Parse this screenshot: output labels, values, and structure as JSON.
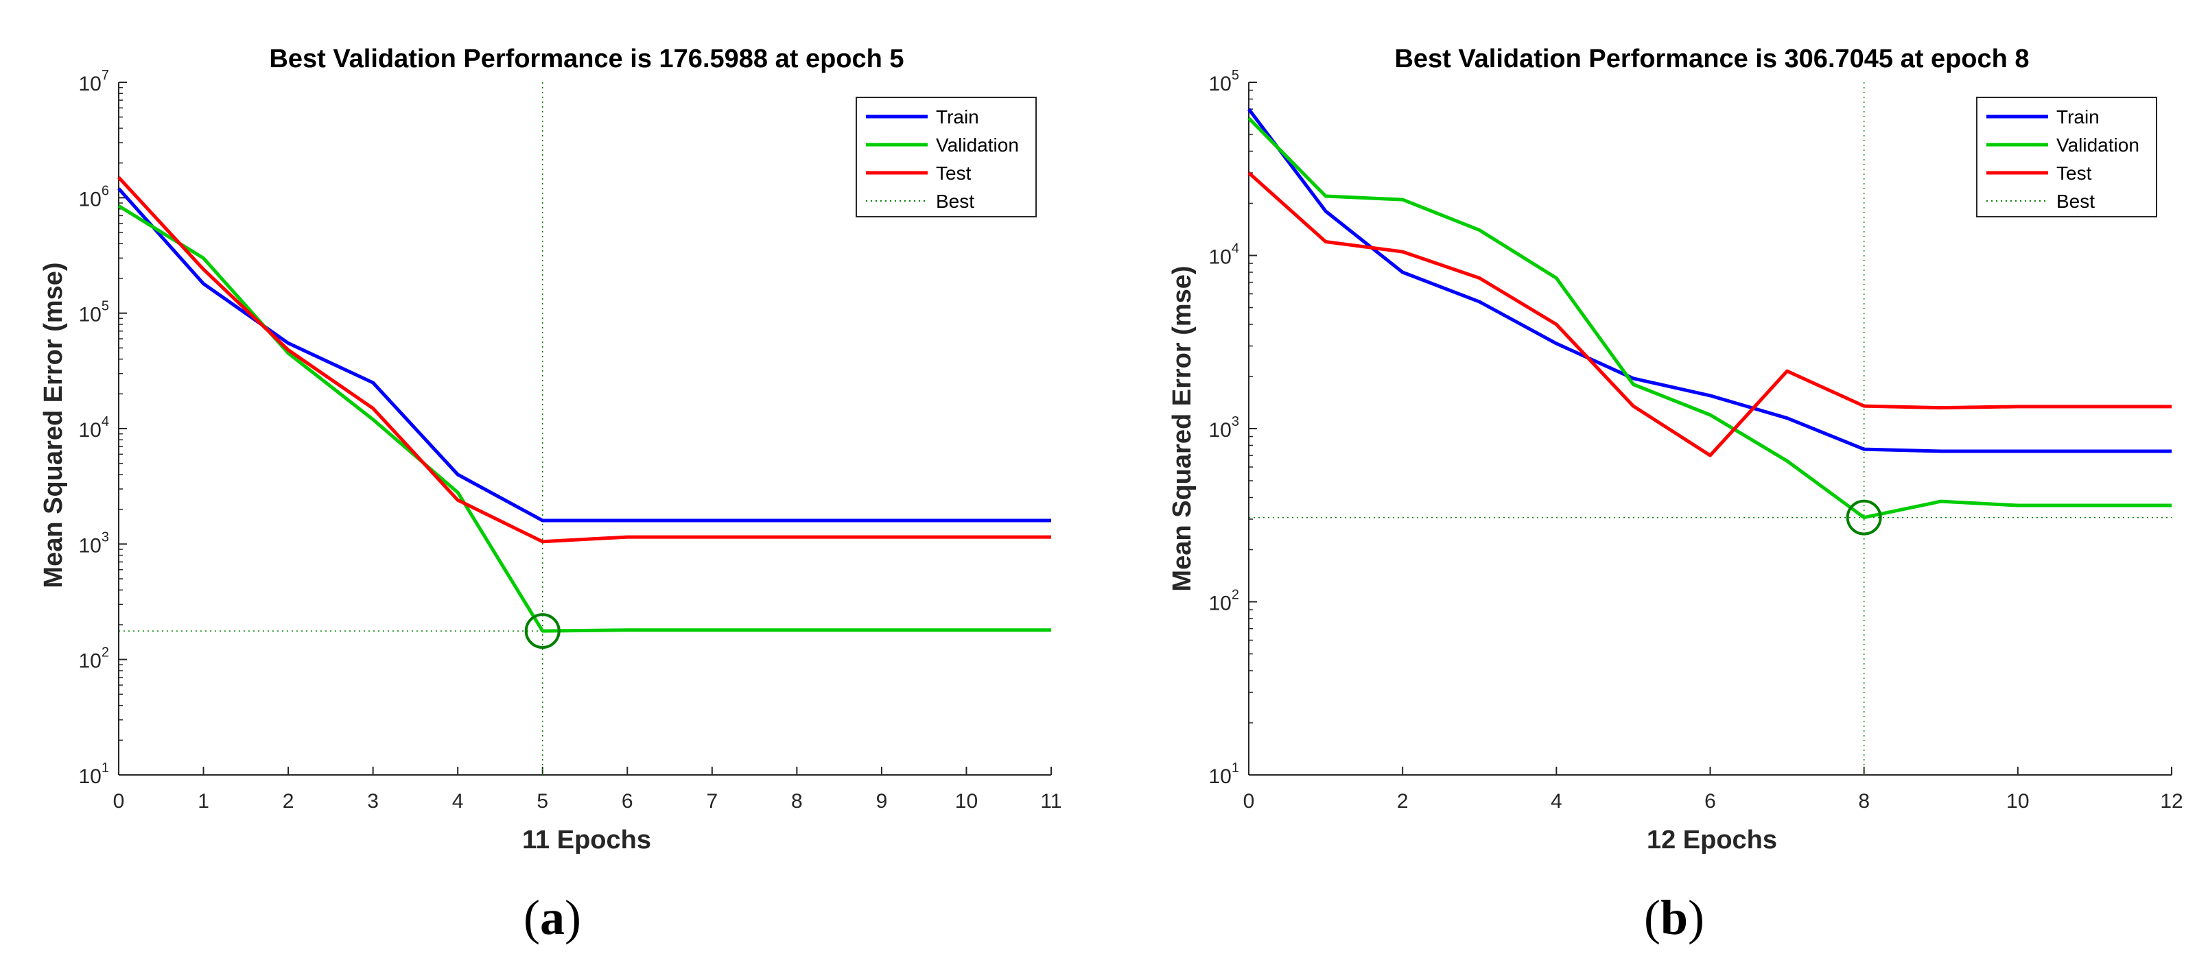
{
  "chart_data": [
    {
      "type": "line",
      "panel_label": "a",
      "title": "Best Validation Performance is 176.5988 at epoch 5",
      "xlabel": "11 Epochs",
      "ylabel": "Mean Squared Error  (mse)",
      "yscale": "log",
      "xlim": [
        0,
        11
      ],
      "ylim": [
        10,
        10000000
      ],
      "x_ticks": [
        0,
        1,
        2,
        3,
        4,
        5,
        6,
        7,
        8,
        9,
        10,
        11
      ],
      "x_tick_labels": [
        "0",
        "1",
        "2",
        "3",
        "4",
        "5",
        "6",
        "7",
        "8",
        "9",
        "10",
        "11"
      ],
      "y_ticks": [
        10,
        100,
        1000,
        10000,
        100000,
        1000000,
        10000000
      ],
      "y_tick_exponents": [
        "1",
        "2",
        "3",
        "4",
        "5",
        "6",
        "7"
      ],
      "y_tick_base": "10",
      "legend_position": "top-right",
      "legend": [
        "Train",
        "Validation",
        "Test",
        "Best"
      ],
      "series": [
        {
          "name": "Train",
          "color": "#0000ff",
          "x": [
            0,
            1,
            2,
            3,
            4,
            5,
            6,
            7,
            8,
            9,
            10,
            11
          ],
          "values": [
            1200000,
            180000,
            55000,
            25000,
            4000,
            1600,
            1600,
            1600,
            1600,
            1600,
            1600,
            1600
          ]
        },
        {
          "name": "Validation",
          "color": "#00cc00",
          "x": [
            0,
            1,
            2,
            3,
            4,
            5,
            6,
            7,
            8,
            9,
            10,
            11
          ],
          "values": [
            850000,
            300000,
            45000,
            12000,
            2800,
            176.5988,
            180,
            180,
            180,
            180,
            180,
            180
          ]
        },
        {
          "name": "Test",
          "color": "#ff0000",
          "x": [
            0,
            1,
            2,
            3,
            4,
            5,
            6,
            7,
            8,
            9,
            10,
            11
          ],
          "values": [
            1500000,
            240000,
            48000,
            15000,
            2400,
            1050,
            1150,
            1150,
            1150,
            1150,
            1150,
            1150
          ]
        }
      ],
      "best": {
        "epoch": 5,
        "value": 176.5988,
        "color": "#008000"
      }
    },
    {
      "type": "line",
      "panel_label": "b",
      "title": "Best Validation Performance is 306.7045 at epoch 8",
      "xlabel": "12 Epochs",
      "ylabel": "Mean Squared Error  (mse)",
      "yscale": "log",
      "xlim": [
        0,
        12
      ],
      "ylim": [
        10,
        100000
      ],
      "x_ticks": [
        0,
        2,
        4,
        6,
        8,
        10,
        12
      ],
      "x_tick_labels": [
        "0",
        "2",
        "4",
        "6",
        "8",
        "10",
        "12"
      ],
      "y_ticks": [
        10,
        100,
        1000,
        10000,
        100000
      ],
      "y_tick_exponents": [
        "1",
        "2",
        "3",
        "4",
        "5"
      ],
      "y_tick_base": "10",
      "legend_position": "top-right",
      "legend": [
        "Train",
        "Validation",
        "Test",
        "Best"
      ],
      "series": [
        {
          "name": "Train",
          "color": "#0000ff",
          "x": [
            0,
            1,
            2,
            3,
            4,
            5,
            6,
            7,
            8,
            9,
            10,
            11,
            12
          ],
          "values": [
            70000,
            18000,
            8000,
            5400,
            3100,
            1950,
            1550,
            1150,
            760,
            740,
            740,
            740,
            740
          ]
        },
        {
          "name": "Validation",
          "color": "#00cc00",
          "x": [
            0,
            1,
            2,
            3,
            4,
            5,
            6,
            7,
            8,
            9,
            10,
            11,
            12
          ],
          "values": [
            62000,
            22000,
            21000,
            14000,
            7400,
            1800,
            1200,
            650,
            306.7045,
            380,
            360,
            360,
            360
          ]
        },
        {
          "name": "Test",
          "color": "#ff0000",
          "x": [
            0,
            1,
            2,
            3,
            4,
            5,
            6,
            7,
            8,
            9,
            10,
            11,
            12
          ],
          "values": [
            30000,
            12000,
            10500,
            7400,
            4000,
            1350,
            700,
            2150,
            1350,
            1320,
            1340,
            1340,
            1340
          ]
        }
      ],
      "best": {
        "epoch": 8,
        "value": 306.7045,
        "color": "#008000"
      }
    }
  ]
}
